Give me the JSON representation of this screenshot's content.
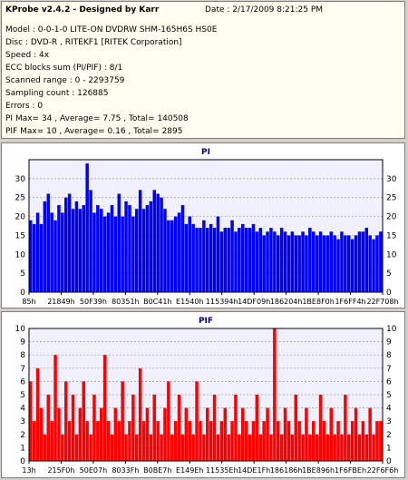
{
  "header": {
    "title": "KProbe v2.4.2 - Designed by Karr",
    "date": "Date : 2/17/2009 8:21:25 PM"
  },
  "info": {
    "model": "Model : 0-0-1-0 LITE-ON DVDRW SHM-165H6S HS0E",
    "disc": "Disc : DVD-R , RITEKF1 [RITEK Corporation]",
    "speed": "Speed : 4x",
    "ecc": "ECC blocks sum (PI/PIF) : 8/1",
    "range": "Scanned range : 0 - 2293759",
    "sampling": "Sampling count : 126885",
    "errors": "Errors : 0",
    "pi_stats": "PI Max= 34 , Average= 7.75 , Total= 140508",
    "pif_stats": "PIF Max= 10 , Average= 0.16 , Total= 2895"
  },
  "colors": {
    "pi_bar": "#0000ff",
    "pif_bar": "#ff0000",
    "plot_bg": "#f0f0ff",
    "grid": "#9a9a9a",
    "title": "#000080"
  },
  "chart_data": [
    {
      "type": "bar",
      "title": "PI",
      "ylim": [
        0,
        35
      ],
      "yticks": [
        0,
        5,
        10,
        15,
        20,
        25,
        30
      ],
      "xtick_labels": [
        "85h",
        "21849h",
        "50F39h",
        "80351h",
        "B0C41h",
        "E1540h",
        "115394h",
        "14DF09h",
        "186204h",
        "1BE8F0h",
        "1F6FF4h",
        "22F708h"
      ],
      "grid": true,
      "x_range": [
        0,
        2293759
      ],
      "summary": {
        "max": 34,
        "average": 7.75,
        "total": 140508
      },
      "series": [
        {
          "values": [
            19,
            18,
            21,
            18,
            24,
            26,
            21,
            19,
            23,
            21,
            25,
            26,
            22,
            24,
            22,
            23,
            34,
            27,
            21,
            23,
            22,
            20,
            21,
            23,
            20,
            26,
            20,
            24,
            23,
            20,
            22,
            27,
            22,
            23,
            24,
            27,
            26,
            25,
            22,
            19,
            19,
            20,
            21,
            23,
            18,
            20,
            18,
            17,
            17,
            19,
            17,
            18,
            17,
            20,
            16,
            17,
            17,
            19,
            16,
            17,
            18,
            17,
            17,
            18,
            16,
            17,
            15,
            16,
            17,
            16,
            15,
            17,
            16,
            15,
            16,
            15,
            15,
            16,
            15,
            17,
            16,
            15,
            16,
            15,
            15,
            16,
            15,
            14,
            16,
            15,
            15,
            14,
            15,
            16,
            16,
            17,
            15,
            14,
            15,
            16
          ]
        }
      ]
    },
    {
      "type": "bar",
      "title": "PIF",
      "ylim": [
        0,
        10
      ],
      "yticks": [
        0,
        1,
        2,
        3,
        4,
        5,
        6,
        7,
        8,
        9,
        10
      ],
      "xtick_labels": [
        "13h",
        "215F0h",
        "50E07h",
        "8033Fh",
        "B0BE7h",
        "E149Eh",
        "11535Eh",
        "14DE1Fh",
        "186186h",
        "1BE896h",
        "1F6FBEh",
        "22F6F6h"
      ],
      "grid": true,
      "x_range": [
        0,
        2293759
      ],
      "summary": {
        "max": 10,
        "average": 0.16,
        "total": 2895
      },
      "series": [
        {
          "values": [
            6,
            3,
            7,
            4,
            2,
            5,
            3,
            8,
            4,
            2,
            6,
            3,
            5,
            2,
            4,
            6,
            3,
            2,
            5,
            3,
            4,
            8,
            3,
            2,
            4,
            3,
            6,
            2,
            3,
            5,
            2,
            7,
            3,
            4,
            2,
            5,
            3,
            2,
            4,
            6,
            2,
            3,
            5,
            2,
            4,
            3,
            2,
            6,
            3,
            2,
            4,
            3,
            5,
            2,
            3,
            4,
            2,
            3,
            5,
            2,
            4,
            3,
            2,
            3,
            5,
            2,
            3,
            4,
            2,
            10,
            3,
            2,
            4,
            3,
            2,
            5,
            3,
            2,
            4,
            2,
            3,
            2,
            5,
            3,
            2,
            4,
            2,
            3,
            2,
            5,
            2,
            3,
            4,
            2,
            3,
            2,
            4,
            2,
            3,
            3
          ]
        }
      ]
    }
  ]
}
